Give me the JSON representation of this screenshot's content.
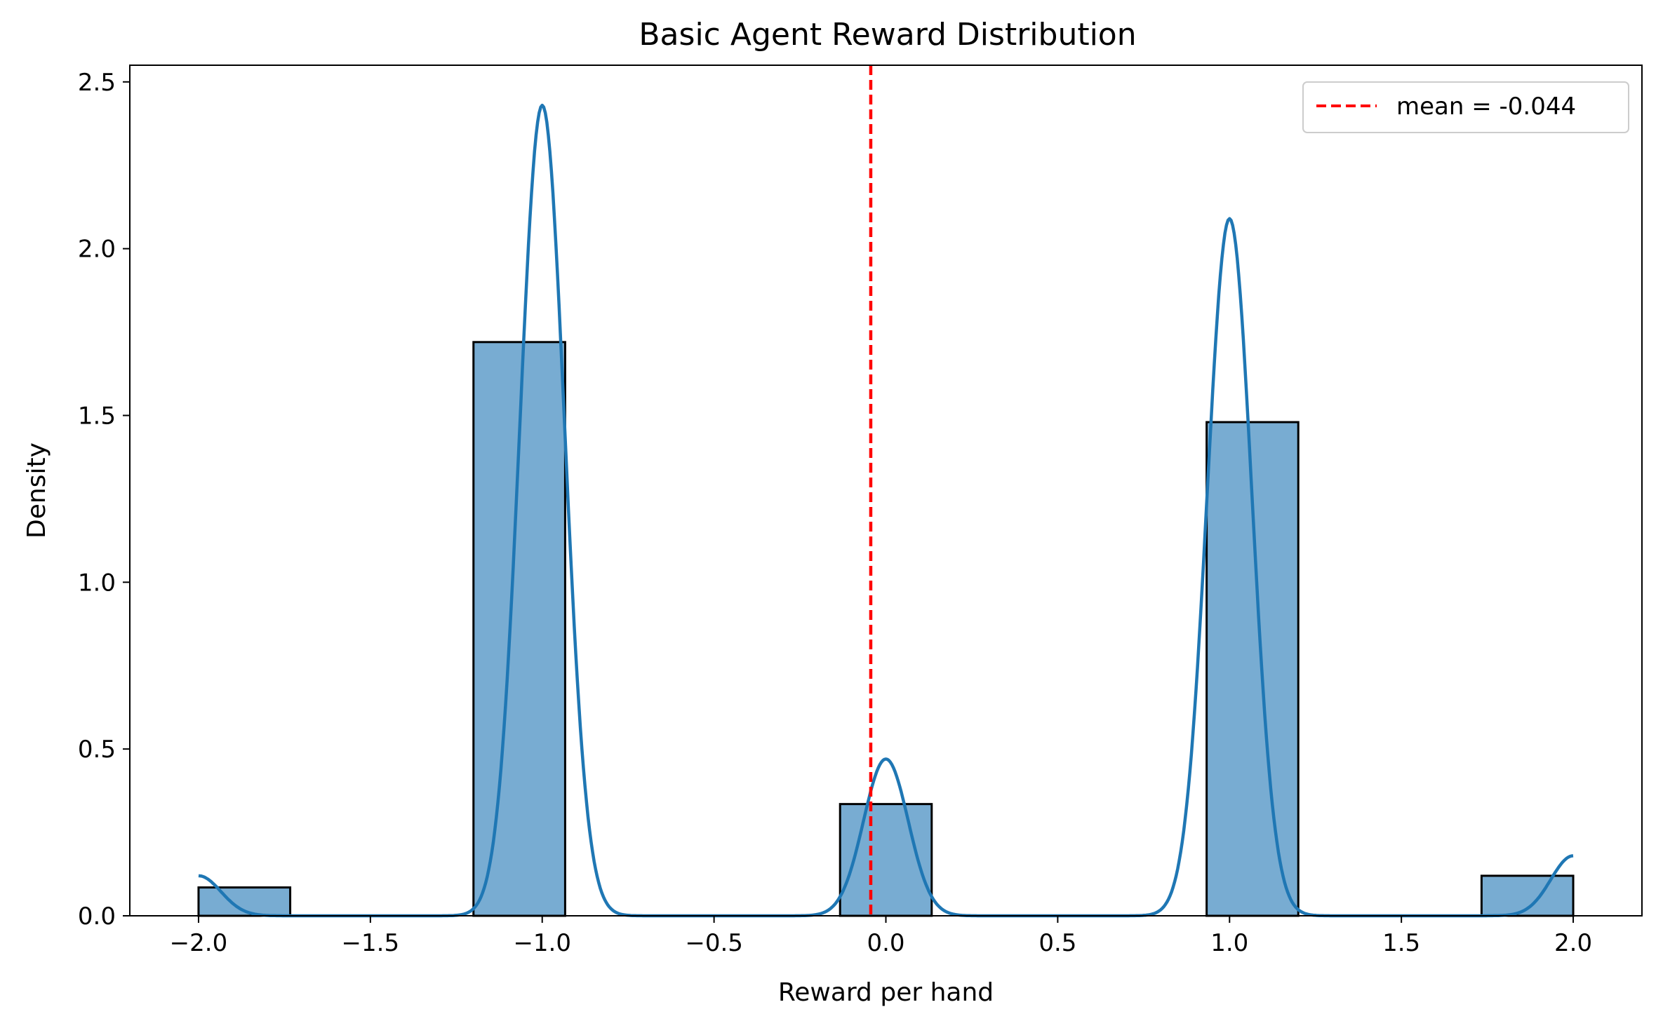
{
  "chart_data": {
    "type": "histogram",
    "title": "Basic Agent Reward Distribution",
    "xlabel": "Reward per hand",
    "ylabel": "Density",
    "xlim": [
      -2.2,
      2.2
    ],
    "ylim": [
      0,
      2.55
    ],
    "grid": false,
    "legend_position": "top-right",
    "x_ticks": [
      -2.0,
      -1.5,
      -1.0,
      -0.5,
      0.0,
      0.5,
      1.0,
      1.5,
      2.0
    ],
    "x_tick_labels": [
      "−2.0",
      "−1.5",
      "−1.0",
      "−0.5",
      "0.0",
      "0.5",
      "1.0",
      "1.5",
      "2.0"
    ],
    "y_ticks": [
      0,
      0.5,
      1.0,
      1.5,
      2.0,
      2.5
    ],
    "y_tick_labels": [
      "0.0",
      "0.5",
      "1.0",
      "1.5",
      "2.0",
      "2.5"
    ],
    "bins": [
      {
        "x0": -2.0,
        "x1": -1.7333,
        "density": 0.085
      },
      {
        "x0": -1.2,
        "x1": -0.9333,
        "density": 1.72
      },
      {
        "x0": -0.1333,
        "x1": 0.1333,
        "density": 0.335
      },
      {
        "x0": 0.9333,
        "x1": 1.2,
        "density": 1.48
      },
      {
        "x0": 1.7333,
        "x1": 2.0,
        "density": 0.12
      }
    ],
    "kde": {
      "x_range": [
        -2.0,
        2.0
      ],
      "components": [
        {
          "center": -2.0,
          "peak": 0.12,
          "sd": 0.065
        },
        {
          "center": -1.0,
          "peak": 2.43,
          "sd": 0.065
        },
        {
          "center": 0.0,
          "peak": 0.47,
          "sd": 0.065
        },
        {
          "center": 1.0,
          "peak": 2.09,
          "sd": 0.065
        },
        {
          "center": 2.0,
          "peak": 0.18,
          "sd": 0.065
        }
      ]
    },
    "mean_line": {
      "x": -0.044,
      "label": "mean = -0.044"
    },
    "colors": {
      "bar_fill": "#78acd2",
      "bar_edge": "#000000",
      "kde": "#1f77b4",
      "mean_line": "#ff0000",
      "legend_border": "#cccccc"
    }
  }
}
